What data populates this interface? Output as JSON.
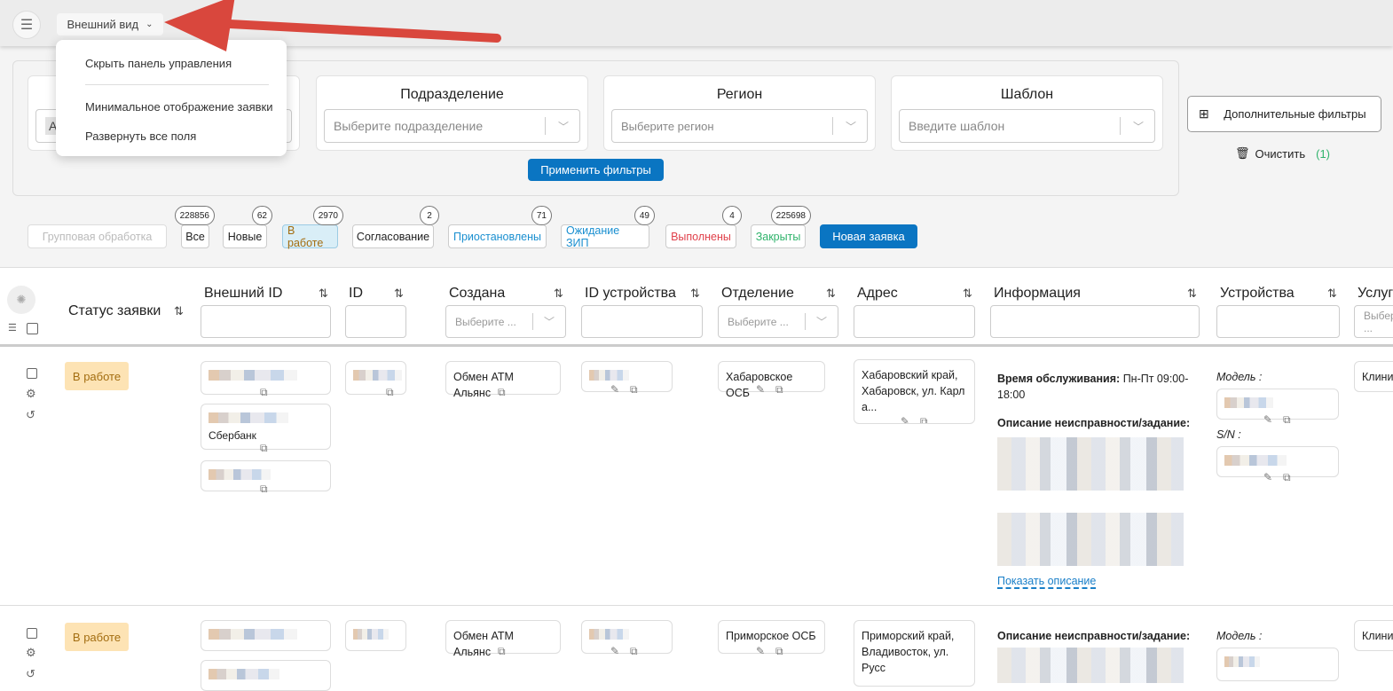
{
  "topbar": {
    "view_label": "Внешний вид"
  },
  "view_menu": {
    "items": [
      "Скрыть панель управления",
      "Минимальное отображение заявки",
      "Развернуть все поля"
    ]
  },
  "filters": {
    "first_box_value": "А",
    "boxes": [
      {
        "title": "Подразделение",
        "placeholder": "Выберите подразделение"
      },
      {
        "title": "Регион",
        "placeholder": "Выберите регион"
      },
      {
        "title": "Шаблон",
        "placeholder": "Введите шаблон"
      }
    ],
    "apply_label": "Применить фильтры",
    "more_filters_label": "Дополнительные фильтры",
    "clear_label": "Очистить",
    "clear_count": "(1)"
  },
  "status_tabs": {
    "group_label": "Групповая обработка",
    "tabs": [
      {
        "label": "Все",
        "count": "228856",
        "color": "#222222"
      },
      {
        "label": "Новые",
        "count": "62",
        "color": "#222222"
      },
      {
        "label": "В работе",
        "count": "2970",
        "color": "#a36d10"
      },
      {
        "label": "Согласование",
        "count": "2",
        "color": "#222222"
      },
      {
        "label": "Приостановлены",
        "count": "71",
        "color": "#1a8fd0"
      },
      {
        "label": "Ожидание ЗИП",
        "count": "49",
        "color": "#1a8fd0"
      },
      {
        "label": "Выполнены",
        "count": "4",
        "color": "#e0404a"
      },
      {
        "label": "Закрыты",
        "count": "225698",
        "color": "#2fb36b"
      }
    ],
    "new_request_label": "Новая заявка"
  },
  "table": {
    "columns": [
      "Статус заявки",
      "Внешний ID",
      "ID",
      "Создана",
      "ID устройства",
      "Отделение",
      "Адрес",
      "Информация",
      "Устройства",
      "Услуги"
    ],
    "select_placeholder": "Выберите ...",
    "rows": [
      {
        "status": "В работе",
        "external_id_text": "Сбербанк",
        "created": "Обмен АТМ Альянс",
        "department": "Хабаровское ОСБ",
        "address": "Хабаровский край, Хабаровск, ул. Карл а...",
        "service_time_label": "Время обслуживания:",
        "service_time": "Пн-Пт 09:00-18:00",
        "desc_label": "Описание неисправности/задание:",
        "show_desc": "Показать описание",
        "model_label": "Модель :",
        "sn_label": "S/N :",
        "services": "Клини"
      },
      {
        "status": "В работе",
        "created": "Обмен АТМ Альянс",
        "department": "Приморское ОСБ",
        "address": "Приморский край, Владивосток, ул. Русс",
        "desc_label": "Описание неисправности/задание:",
        "model_label": "Модель :",
        "services": "Клини"
      }
    ]
  },
  "colors": {
    "accent": "#0a75c2",
    "status_in_work_bg": "#fde3b4",
    "arrow": "#d9473d"
  }
}
